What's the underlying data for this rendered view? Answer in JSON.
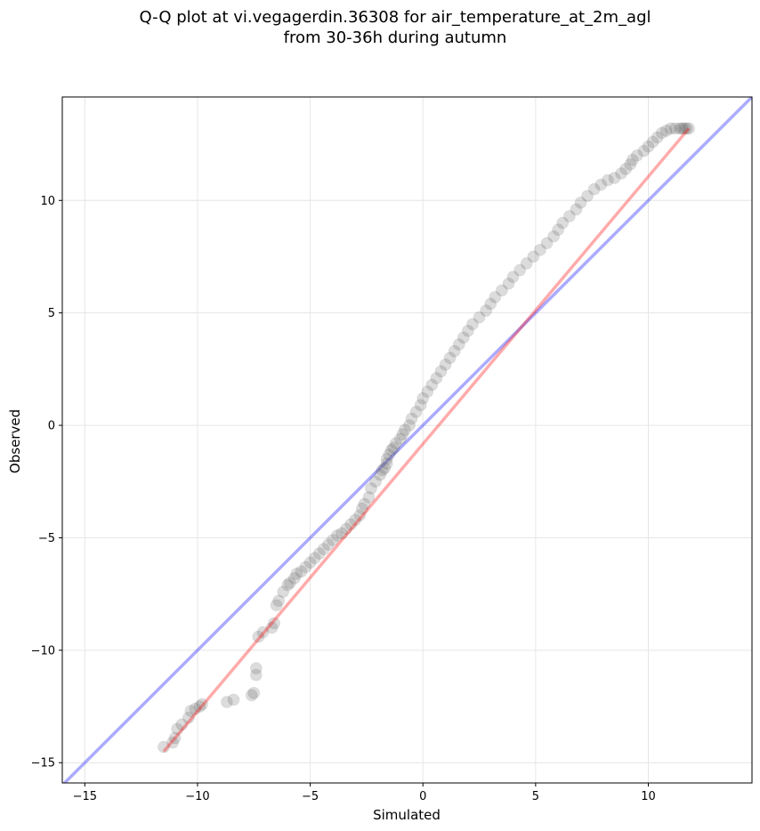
{
  "chart_data": {
    "type": "scatter",
    "title": [
      "Q-Q plot at vi.vegagerdin.36308 for air_temperature_at_2m_agl",
      "from 30-36h during autumn"
    ],
    "xlabel": "Simulated",
    "ylabel": "Observed",
    "xlim": [
      -16,
      14.6
    ],
    "ylim": [
      -15.9,
      14.6
    ],
    "x_ticks": [
      -15,
      -10,
      -5,
      0,
      5,
      10
    ],
    "y_ticks": [
      -15,
      -10,
      -5,
      0,
      5,
      10
    ],
    "x_tick_labels": [
      "−15",
      "−10",
      "−5",
      "0",
      "5",
      "10"
    ],
    "y_tick_labels": [
      "−15",
      "−10",
      "−5",
      "0",
      "5",
      "10"
    ],
    "grid": true,
    "series": [
      {
        "x": [
          -11.5,
          -11.1,
          -11.0,
          -10.9,
          -10.7,
          -10.4,
          -10.3,
          -10.1,
          -9.9,
          -9.8,
          -8.7,
          -8.4,
          -7.6,
          -7.5,
          -7.4,
          -7.4,
          -7.3,
          -7.1,
          -6.7,
          -6.6,
          -6.5,
          -6.4,
          -6.2,
          -6.0,
          -5.9,
          -5.7,
          -5.6,
          -5.4,
          -5.2,
          -5.0,
          -4.8,
          -4.6,
          -4.4,
          -4.2,
          -4.0,
          -3.8,
          -3.6,
          -3.4,
          -3.2,
          -3.0,
          -2.8,
          -2.7,
          -2.6,
          -2.4,
          -2.3,
          -2.1,
          -1.9,
          -1.8,
          -1.7,
          -1.6,
          -1.6,
          -1.5,
          -1.4,
          -1.3,
          -1.2,
          -1.0,
          -0.9,
          -0.8,
          -0.6,
          -0.5,
          -0.3,
          -0.1,
          0.0,
          0.2,
          0.4,
          0.6,
          0.8,
          1.0,
          1.2,
          1.4,
          1.6,
          1.8,
          2.0,
          2.2,
          2.5,
          2.8,
          3.0,
          3.2,
          3.5,
          3.8,
          4.0,
          4.3,
          4.6,
          4.9,
          5.2,
          5.5,
          5.8,
          6.0,
          6.2,
          6.5,
          6.8,
          7.0,
          7.3,
          7.6,
          7.9,
          8.2,
          8.5,
          8.8,
          9.0,
          9.2,
          9.3,
          9.5,
          9.8,
          10.0,
          10.2,
          10.4,
          10.6,
          10.8,
          11.0,
          11.2,
          11.4,
          11.5,
          11.6,
          11.7,
          11.8
        ],
        "y": [
          -14.3,
          -14.1,
          -13.9,
          -13.5,
          -13.3,
          -13.0,
          -12.7,
          -12.6,
          -12.5,
          -12.4,
          -12.3,
          -12.2,
          -12.0,
          -11.9,
          -11.1,
          -10.8,
          -9.4,
          -9.2,
          -9.0,
          -8.8,
          -8.0,
          -7.8,
          -7.4,
          -7.1,
          -7.0,
          -6.8,
          -6.6,
          -6.5,
          -6.3,
          -6.1,
          -5.9,
          -5.7,
          -5.5,
          -5.3,
          -5.1,
          -4.9,
          -4.8,
          -4.6,
          -4.4,
          -4.2,
          -4.0,
          -3.7,
          -3.5,
          -3.2,
          -2.8,
          -2.5,
          -2.2,
          -2.0,
          -1.9,
          -1.7,
          -1.5,
          -1.3,
          -1.1,
          -1.0,
          -0.8,
          -0.6,
          -0.4,
          -0.2,
          0.0,
          0.3,
          0.6,
          0.9,
          1.2,
          1.5,
          1.8,
          2.1,
          2.4,
          2.7,
          3.0,
          3.3,
          3.6,
          3.9,
          4.2,
          4.5,
          4.8,
          5.1,
          5.4,
          5.7,
          6.0,
          6.3,
          6.6,
          6.9,
          7.2,
          7.5,
          7.8,
          8.1,
          8.4,
          8.7,
          9.0,
          9.3,
          9.6,
          9.9,
          10.2,
          10.5,
          10.7,
          10.9,
          11.0,
          11.2,
          11.4,
          11.6,
          11.8,
          12.0,
          12.2,
          12.4,
          12.6,
          12.8,
          13.0,
          13.1,
          13.2,
          13.2,
          13.2,
          13.2,
          13.2,
          13.2,
          13.2
        ],
        "color": "#606060"
      }
    ],
    "reference_line": {
      "color": "#0000ff",
      "slope": 1,
      "intercept": 0
    },
    "fit_line": {
      "color": "#ff0000",
      "x": [
        -11.5,
        11.8
      ],
      "y": [
        -14.5,
        13.2
      ]
    }
  }
}
